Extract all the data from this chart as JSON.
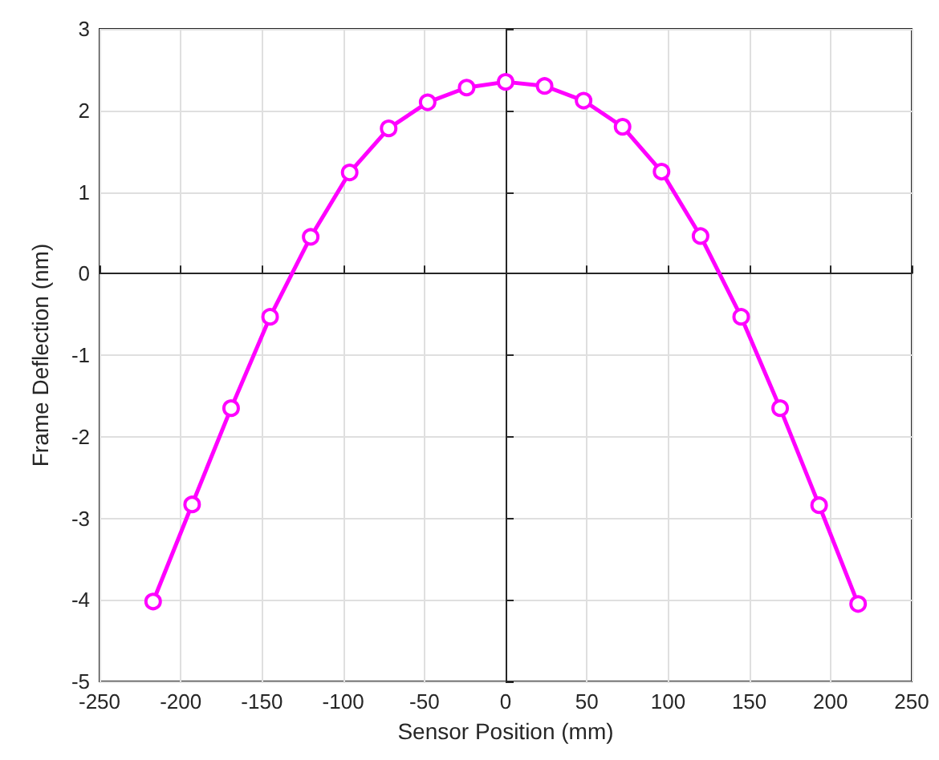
{
  "chart_data": {
    "type": "line",
    "xlabel": "Sensor Position (mm)",
    "ylabel": "Frame Deflection (nm)",
    "x": [
      -217,
      -193,
      -169,
      -145,
      -120,
      -96,
      -72,
      -48,
      -24,
      0,
      24,
      48,
      72,
      96,
      120,
      145,
      169,
      193,
      217
    ],
    "series": [
      {
        "color": "#ff00ff",
        "values": [
          -4.02,
          -2.83,
          -1.65,
          -0.53,
          0.45,
          1.24,
          1.78,
          2.1,
          2.28,
          2.35,
          2.3,
          2.12,
          1.8,
          1.25,
          0.46,
          -0.53,
          -1.65,
          -2.84,
          -4.05
        ]
      }
    ],
    "xlim": [
      -250,
      250
    ],
    "xticks": [
      -250,
      -200,
      -150,
      -100,
      -50,
      0,
      50,
      100,
      150,
      200,
      250
    ],
    "ylim": [
      -5,
      3
    ],
    "yticks": [
      -5,
      -4,
      -3,
      -2,
      -1,
      0,
      1,
      2,
      3
    ],
    "grid": true,
    "marker": "circle",
    "line_style": "solid"
  }
}
